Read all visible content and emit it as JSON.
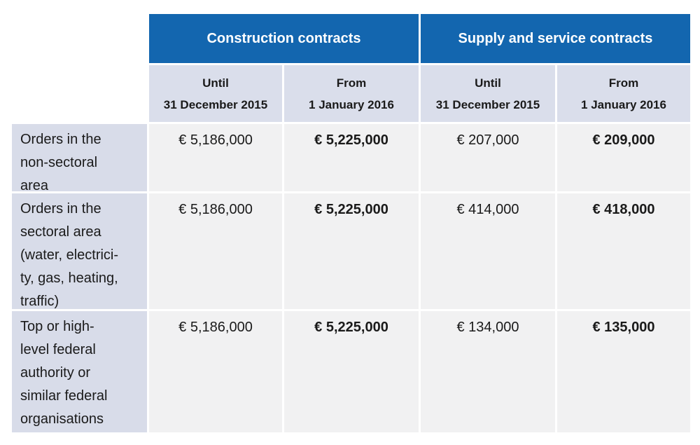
{
  "table": {
    "groups": [
      {
        "label": "Construction contracts"
      },
      {
        "label": "Supply and service contracts"
      }
    ],
    "subheaders": [
      "Until\n31 December 2015",
      "From\n1 January 2016",
      "Until\n31 December 2015",
      "From\n1 January 2016"
    ],
    "rows": [
      {
        "label": "Orders in the\nnon-sectoral\narea",
        "values": [
          "€ 5,186,000",
          "€ 5,225,000",
          "€ 207,000",
          "€ 209,000"
        ]
      },
      {
        "label": "Orders in the\nsectoral area\n(water, electrici-\nty, gas, heating,\ntraffic)",
        "values": [
          "€ 5,186,000",
          "€ 5,225,000",
          "€ 414,000",
          "€ 418,000"
        ]
      },
      {
        "label": "Top or high-\nlevel federal\nauthority or\nsimilar federal\norganisations",
        "values": [
          "€ 5,186,000",
          "€ 5,225,000",
          "€ 134,000",
          "€ 135,000"
        ]
      }
    ]
  },
  "colors": {
    "header_blue": "#1366af",
    "subheader_bg": "#dadeeb",
    "label_bg": "#d8dce9",
    "cell_bg": "#f1f1f2",
    "text": "#1a1a1a",
    "page_bg": "#ffffff"
  }
}
